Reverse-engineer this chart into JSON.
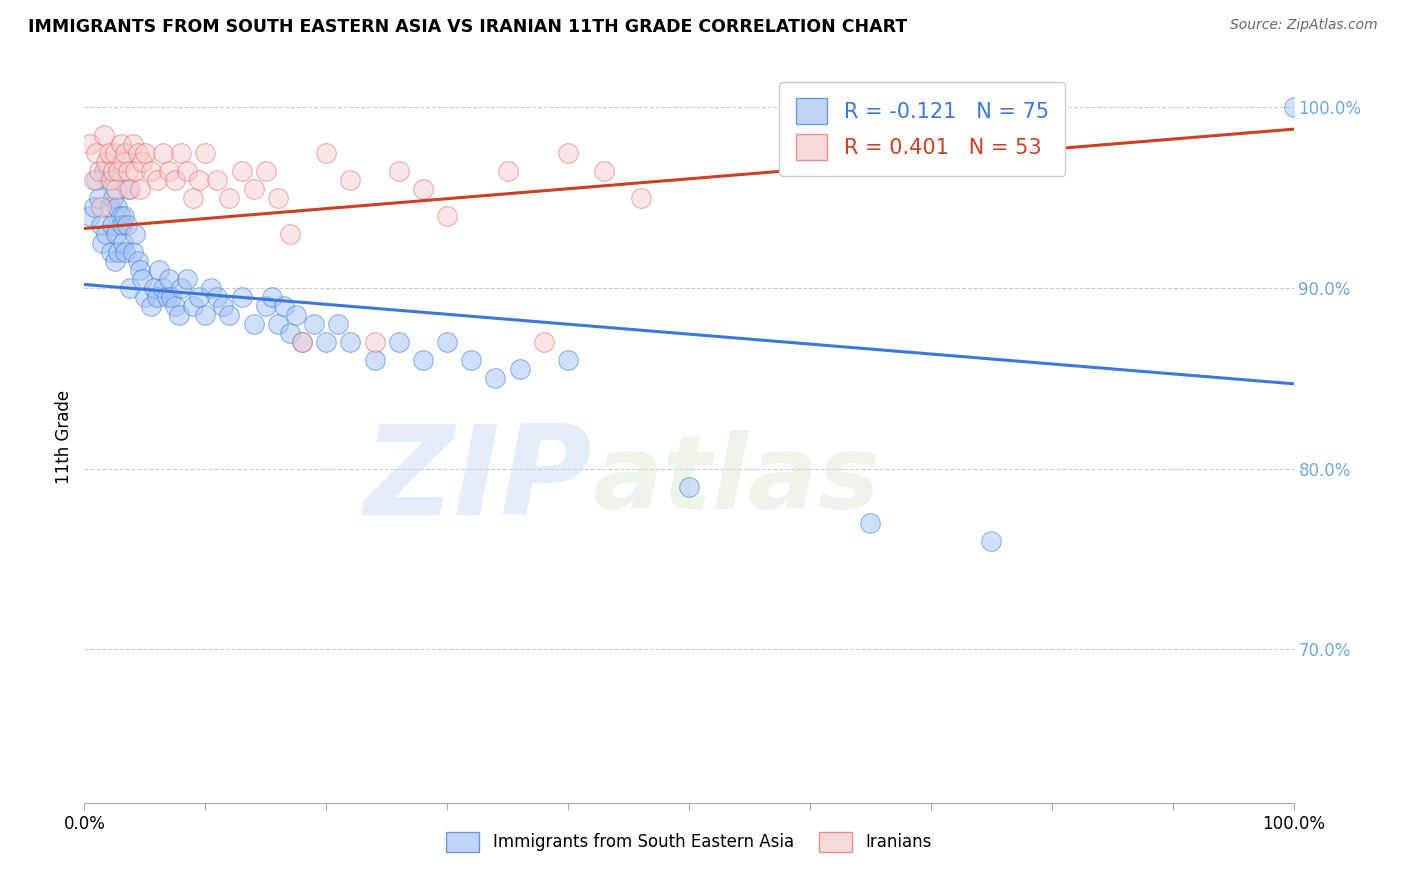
{
  "title": "IMMIGRANTS FROM SOUTH EASTERN ASIA VS IRANIAN 11TH GRADE CORRELATION CHART",
  "source": "Source: ZipAtlas.com",
  "ylabel": "11th Grade",
  "xlim": [
    0.0,
    1.0
  ],
  "ylim": [
    0.615,
    1.02
  ],
  "yticks": [
    0.7,
    0.8,
    0.9,
    1.0
  ],
  "ytick_labels": [
    "70.0%",
    "80.0%",
    "90.0%",
    "100.0%"
  ],
  "xticks": [
    0.0,
    0.1,
    0.2,
    0.3,
    0.4,
    0.5,
    0.6,
    0.7,
    0.8,
    0.9,
    1.0
  ],
  "xtick_labels": [
    "0.0%",
    "",
    "",
    "",
    "",
    "",
    "",
    "",
    "",
    "",
    "100.0%"
  ],
  "blue_color": "#a4c2f4",
  "pink_color": "#f4cccc",
  "blue_line_color": "#3c78d8",
  "pink_line_color": "#cc4125",
  "legend_blue_label": "Immigrants from South Eastern Asia",
  "legend_pink_label": "Iranians",
  "r_blue": -0.121,
  "n_blue": 75,
  "r_pink": 0.401,
  "n_pink": 53,
  "blue_intercept": 0.902,
  "blue_slope": -0.055,
  "pink_intercept": 0.933,
  "pink_slope": 0.055,
  "blue_x": [
    0.005,
    0.008,
    0.01,
    0.012,
    0.014,
    0.015,
    0.016,
    0.018,
    0.02,
    0.021,
    0.022,
    0.023,
    0.024,
    0.025,
    0.026,
    0.027,
    0.028,
    0.03,
    0.031,
    0.032,
    0.033,
    0.034,
    0.035,
    0.036,
    0.038,
    0.04,
    0.042,
    0.044,
    0.046,
    0.048,
    0.05,
    0.055,
    0.058,
    0.06,
    0.062,
    0.065,
    0.068,
    0.07,
    0.072,
    0.075,
    0.078,
    0.08,
    0.085,
    0.09,
    0.095,
    0.1,
    0.105,
    0.11,
    0.115,
    0.12,
    0.13,
    0.14,
    0.15,
    0.155,
    0.16,
    0.165,
    0.17,
    0.175,
    0.18,
    0.19,
    0.2,
    0.21,
    0.22,
    0.24,
    0.26,
    0.28,
    0.3,
    0.32,
    0.34,
    0.36,
    0.4,
    0.5,
    0.65,
    0.75,
    1.0
  ],
  "blue_y": [
    0.94,
    0.945,
    0.96,
    0.95,
    0.935,
    0.925,
    0.965,
    0.93,
    0.96,
    0.945,
    0.92,
    0.935,
    0.95,
    0.915,
    0.93,
    0.945,
    0.92,
    0.94,
    0.935,
    0.925,
    0.94,
    0.92,
    0.935,
    0.955,
    0.9,
    0.92,
    0.93,
    0.915,
    0.91,
    0.905,
    0.895,
    0.89,
    0.9,
    0.895,
    0.91,
    0.9,
    0.895,
    0.905,
    0.895,
    0.89,
    0.885,
    0.9,
    0.905,
    0.89,
    0.895,
    0.885,
    0.9,
    0.895,
    0.89,
    0.885,
    0.895,
    0.88,
    0.89,
    0.895,
    0.88,
    0.89,
    0.875,
    0.885,
    0.87,
    0.88,
    0.87,
    0.88,
    0.87,
    0.86,
    0.87,
    0.86,
    0.87,
    0.86,
    0.85,
    0.855,
    0.86,
    0.79,
    0.77,
    0.76,
    1.0
  ],
  "pink_x": [
    0.005,
    0.008,
    0.01,
    0.012,
    0.014,
    0.016,
    0.018,
    0.02,
    0.022,
    0.024,
    0.025,
    0.026,
    0.028,
    0.03,
    0.032,
    0.034,
    0.036,
    0.038,
    0.04,
    0.042,
    0.044,
    0.046,
    0.048,
    0.05,
    0.055,
    0.06,
    0.065,
    0.07,
    0.075,
    0.08,
    0.085,
    0.09,
    0.095,
    0.1,
    0.11,
    0.12,
    0.13,
    0.14,
    0.15,
    0.16,
    0.17,
    0.18,
    0.2,
    0.22,
    0.24,
    0.26,
    0.28,
    0.3,
    0.35,
    0.38,
    0.4,
    0.43,
    0.46
  ],
  "pink_y": [
    0.98,
    0.96,
    0.975,
    0.965,
    0.945,
    0.985,
    0.97,
    0.975,
    0.96,
    0.965,
    0.975,
    0.955,
    0.965,
    0.98,
    0.97,
    0.975,
    0.965,
    0.955,
    0.98,
    0.965,
    0.975,
    0.955,
    0.97,
    0.975,
    0.965,
    0.96,
    0.975,
    0.965,
    0.96,
    0.975,
    0.965,
    0.95,
    0.96,
    0.975,
    0.96,
    0.95,
    0.965,
    0.955,
    0.965,
    0.95,
    0.93,
    0.87,
    0.975,
    0.96,
    0.87,
    0.965,
    0.955,
    0.94,
    0.965,
    0.87,
    0.975,
    0.965,
    0.95
  ],
  "watermark_zip": "ZIP",
  "watermark_atlas": "atlas",
  "background_color": "#ffffff",
  "grid_color": "#cccccc",
  "ytick_color": "#6fa8dc"
}
